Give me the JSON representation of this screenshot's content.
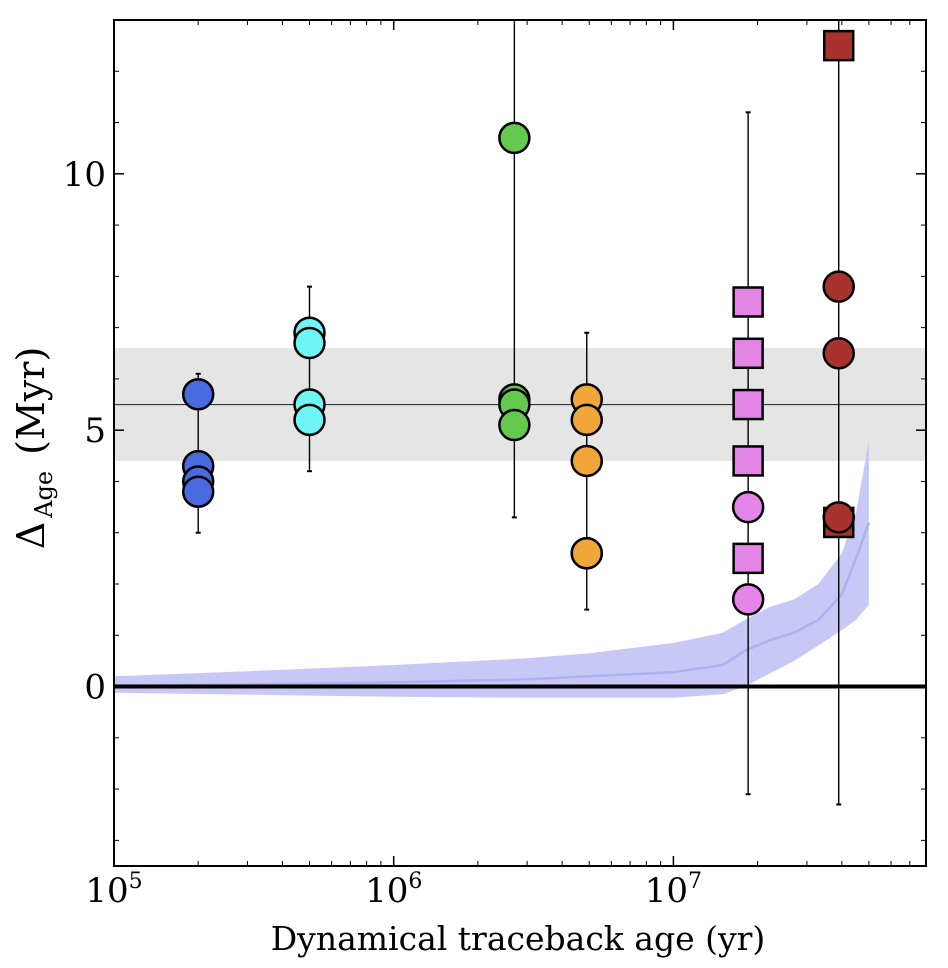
{
  "chart_data": {
    "type": "scatter",
    "title": "",
    "xlabel": "Dynamical traceback age (yr)",
    "ylabel": {
      "main": "Δ",
      "subscript": "Age",
      "unit": "(Myr)"
    },
    "xscale": "log",
    "xlim": [
      100000,
      80000000
    ],
    "ylim": [
      -3.5,
      13
    ],
    "grid": false,
    "legend": "none",
    "x_ticks": [
      {
        "value": 100000,
        "base": "10",
        "exp": "5"
      },
      {
        "value": 1000000,
        "base": "10",
        "exp": "6"
      },
      {
        "value": 10000000,
        "base": "10",
        "exp": "7"
      }
    ],
    "y_ticks": [
      {
        "value": 0,
        "label": "0"
      },
      {
        "value": 5,
        "label": "5"
      },
      {
        "value": 10,
        "label": "10"
      }
    ],
    "reference_line": {
      "y": 5.5,
      "band": [
        4.4,
        6.6
      ],
      "band_color": "#e5e5e5",
      "color": "#333333"
    },
    "zero_line": {
      "y": 0,
      "color": "#000000"
    },
    "model_band": {
      "color": "#c8c8f7",
      "median_color": "#aeb0ef",
      "x": [
        100000,
        300000,
        1000000,
        3000000,
        5000000,
        10000000,
        15000000,
        18000000,
        22000000,
        27000000,
        33000000,
        40000000,
        45000000,
        50000000
      ],
      "lower": [
        -0.12,
        -0.16,
        -0.2,
        -0.22,
        -0.22,
        -0.22,
        -0.15,
        0,
        0.25,
        0.5,
        0.8,
        1.1,
        1.3,
        1.6
      ],
      "upper": [
        0.2,
        0.3,
        0.42,
        0.55,
        0.65,
        0.85,
        1.05,
        1.3,
        1.55,
        1.7,
        2.0,
        2.6,
        3.4,
        4.8
      ],
      "median": [
        0.02,
        0.04,
        0.08,
        0.14,
        0.2,
        0.28,
        0.42,
        0.7,
        0.9,
        1.05,
        1.3,
        1.8,
        2.5,
        3.2
      ]
    },
    "series": [
      {
        "color": "#4a6ae0",
        "marker": "circle",
        "x": [
          200000,
          200000,
          200000,
          200000
        ],
        "y": [
          5.7,
          4.3,
          4.0,
          3.8
        ],
        "err_low": [
          3.0,
          3.0,
          3.0,
          3.0
        ],
        "err_high": [
          6.1,
          6.1,
          6.1,
          6.1
        ]
      },
      {
        "color": "#6ef6f7",
        "marker": "circle",
        "x": [
          500000,
          500000,
          500000,
          500000
        ],
        "y": [
          6.9,
          6.7,
          5.5,
          5.2
        ],
        "err_low": [
          4.2,
          4.2,
          4.2,
          4.2
        ],
        "err_high": [
          7.8,
          7.8,
          7.8,
          7.8
        ]
      },
      {
        "color": "#65c94f",
        "marker": "circle",
        "x": [
          2700000,
          2700000,
          2700000,
          2700000
        ],
        "y": [
          10.7,
          5.6,
          5.5,
          5.1
        ],
        "err_low": [
          3.3,
          3.3,
          3.3,
          3.3
        ],
        "err_high": [
          13,
          13,
          13,
          13
        ]
      },
      {
        "color": "#f1a63a",
        "marker": "circle",
        "x": [
          4900000,
          4900000,
          4900000,
          4900000,
          4900000
        ],
        "y": [
          5.6,
          5.2,
          4.4,
          2.6,
          2.6
        ],
        "err_low": [
          1.5,
          1.5,
          1.5,
          1.5,
          1.5
        ],
        "err_high": [
          6.9,
          6.9,
          6.9,
          6.9,
          6.9
        ]
      },
      {
        "color": "#e484e6",
        "marker": "square",
        "x": [
          18500000,
          18500000,
          18500000,
          18500000,
          18500000
        ],
        "y": [
          7.5,
          6.5,
          5.5,
          4.4,
          2.5
        ],
        "err_low": [
          -2.1,
          -2.1,
          -2.1,
          -2.1,
          -2.1
        ],
        "err_high": [
          11.2,
          11.2,
          11.2,
          11.2,
          11.2
        ]
      },
      {
        "color": "#e484e6",
        "marker": "circle",
        "x": [
          18500000,
          18500000
        ],
        "y": [
          3.5,
          1.7
        ],
        "err_low": [
          -2.1,
          -2.1
        ],
        "err_high": [
          11.2,
          11.2
        ]
      },
      {
        "color": "#a8322c",
        "marker": "square",
        "x": [
          39000000,
          39000000
        ],
        "y": [
          12.5,
          3.2
        ],
        "err_low": [
          -2.3,
          -2.3
        ],
        "err_high": [
          13,
          13
        ]
      },
      {
        "color": "#a8322c",
        "marker": "circle",
        "x": [
          39000000,
          39000000,
          39000000
        ],
        "y": [
          7.8,
          6.5,
          3.3
        ],
        "err_low": [
          -2.3,
          -2.3,
          -2.3
        ],
        "err_high": [
          13,
          13,
          13
        ]
      }
    ]
  }
}
